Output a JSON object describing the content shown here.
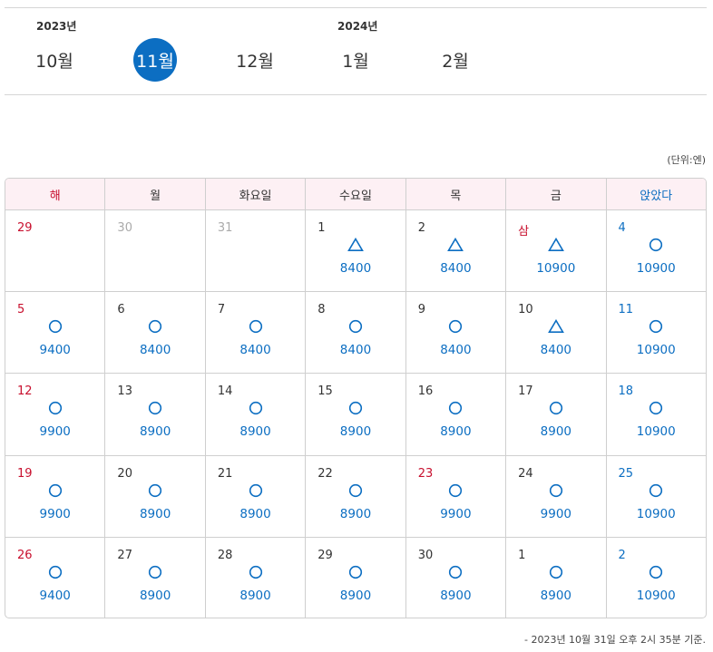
{
  "month_nav": {
    "years": [
      {
        "label": "2023년"
      },
      {
        "label": "2024년"
      }
    ],
    "months": [
      {
        "label": "10월",
        "active": false
      },
      {
        "label": "11월",
        "active": true
      },
      {
        "label": "12월",
        "active": false
      },
      {
        "label": "1월",
        "active": false
      },
      {
        "label": "2월",
        "active": false
      }
    ]
  },
  "unit_label": "(단위:엔)",
  "weekday_headers": [
    "해",
    "월",
    "화요일",
    "수요일",
    "목",
    "금",
    "앉았다"
  ],
  "weeks": [
    [
      {
        "day": "29",
        "muted": true
      },
      {
        "day": "30",
        "muted": true
      },
      {
        "day": "31",
        "muted": true
      },
      {
        "day": "1",
        "mark": "triangle",
        "price": "8400"
      },
      {
        "day": "2",
        "mark": "triangle",
        "price": "8400"
      },
      {
        "day": "삼",
        "holiday": true,
        "mark": "triangle",
        "price": "10900"
      },
      {
        "day": "4",
        "mark": "circle",
        "price": "10900"
      }
    ],
    [
      {
        "day": "5",
        "mark": "circle",
        "price": "9400"
      },
      {
        "day": "6",
        "mark": "circle",
        "price": "8400"
      },
      {
        "day": "7",
        "mark": "circle",
        "price": "8400"
      },
      {
        "day": "8",
        "mark": "circle",
        "price": "8400"
      },
      {
        "day": "9",
        "mark": "circle",
        "price": "8400"
      },
      {
        "day": "10",
        "mark": "triangle",
        "price": "8400"
      },
      {
        "day": "11",
        "mark": "circle",
        "price": "10900"
      }
    ],
    [
      {
        "day": "12",
        "mark": "circle",
        "price": "9900"
      },
      {
        "day": "13",
        "mark": "circle",
        "price": "8900"
      },
      {
        "day": "14",
        "mark": "circle",
        "price": "8900"
      },
      {
        "day": "15",
        "mark": "circle",
        "price": "8900"
      },
      {
        "day": "16",
        "mark": "circle",
        "price": "8900"
      },
      {
        "day": "17",
        "mark": "circle",
        "price": "8900"
      },
      {
        "day": "18",
        "mark": "circle",
        "price": "10900"
      }
    ],
    [
      {
        "day": "19",
        "mark": "circle",
        "price": "9900"
      },
      {
        "day": "20",
        "mark": "circle",
        "price": "8900"
      },
      {
        "day": "21",
        "mark": "circle",
        "price": "8900"
      },
      {
        "day": "22",
        "mark": "circle",
        "price": "8900"
      },
      {
        "day": "23",
        "holiday": true,
        "mark": "circle",
        "price": "9900"
      },
      {
        "day": "24",
        "mark": "circle",
        "price": "9900"
      },
      {
        "day": "25",
        "mark": "circle",
        "price": "10900"
      }
    ],
    [
      {
        "day": "26",
        "mark": "circle",
        "price": "9400"
      },
      {
        "day": "27",
        "mark": "circle",
        "price": "8900"
      },
      {
        "day": "28",
        "mark": "circle",
        "price": "8900"
      },
      {
        "day": "29",
        "mark": "circle",
        "price": "8900"
      },
      {
        "day": "30",
        "mark": "circle",
        "price": "8900"
      },
      {
        "day": "1",
        "mark": "circle",
        "price": "8900"
      },
      {
        "day": "2",
        "mark": "circle",
        "price": "10900"
      }
    ]
  ],
  "footnote": "- 2023년 10월 31일 오후 2시 35분 기준.",
  "colors": {
    "accent": "#0c6ec2",
    "holiday": "#c8102e",
    "header_bg": "#fdf0f4",
    "muted": "#aaaaaa"
  }
}
